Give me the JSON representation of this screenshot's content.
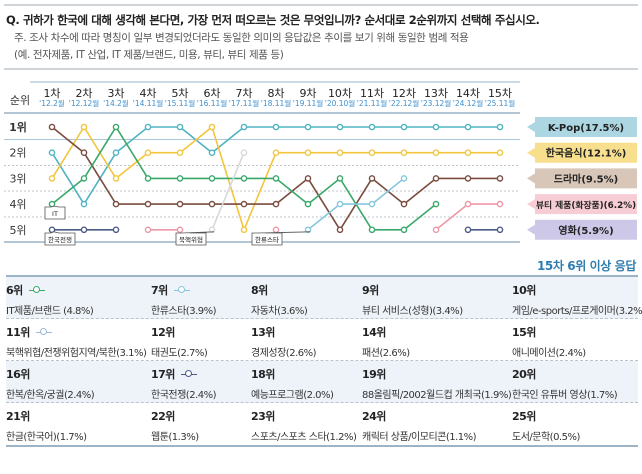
{
  "header": {
    "question": "Q. 귀하가 한국에 대해 생각해 본다면, 가장 먼저 떠오르는 것은 무엇입니까? 순서대로 2순위까지 선택해 주십시오.",
    "note1": "주. 조사 차수에 따라 명칭이 일부 변경되었더라도 동일한 의미의 응답값은 추이를 보기 위해 동일한 범례 적용",
    "note2": "(예. 전자제품, IT 산업, IT 제품/브랜드, 미용, 뷰티, 뷰티 제품 등)"
  },
  "chart_data": {
    "type": "line",
    "ylabel": "순위",
    "categories": [
      "1차",
      "2차",
      "3차",
      "4차",
      "5차",
      "6차",
      "7차",
      "8차",
      "9차",
      "10차",
      "11차",
      "12차",
      "13차",
      "14차",
      "15차"
    ],
    "dates": [
      "'12.2월",
      "'12.12월",
      "'14.2월",
      "'14.11월",
      "'15.11월",
      "'16.11월",
      "'17.11월",
      "'18.11월",
      "'19.11월",
      "'20.10월",
      "'21.11월",
      "'22.12월",
      "'23.12월",
      "'24.12월",
      "'25.11월"
    ],
    "y_ticks": [
      "1위",
      "2위",
      "3위",
      "4위",
      "5위"
    ],
    "ylim": [
      1,
      5
    ],
    "y_inverted": true,
    "series": [
      {
        "name": "K-Pop(17.5%)",
        "color": "#4fb3c4",
        "legend_bg": "#acd6e2",
        "values": [
          2,
          4,
          2,
          1,
          1,
          2,
          1,
          1,
          1,
          1,
          1,
          1,
          1,
          1,
          1
        ]
      },
      {
        "name": "한국음식(12.1%)",
        "color": "#f2c53d",
        "legend_bg": "#f7df8e",
        "values": [
          3,
          1,
          3,
          2,
          2,
          1,
          5,
          2,
          2,
          2,
          2,
          2,
          2,
          2,
          2
        ]
      },
      {
        "name": "드라마(9.5%)",
        "color": "#7a4b3e",
        "legend_bg": "#d8c6b8",
        "values": [
          1,
          2,
          4,
          4,
          4,
          4,
          4,
          4,
          3,
          5,
          3,
          4,
          3,
          3,
          3
        ]
      },
      {
        "name": "뷰티 제품(화장품)(6.2%)",
        "color": "#ee97a6",
        "legend_bg": "#f6cdd4",
        "values": [
          null,
          null,
          null,
          5,
          5,
          null,
          null,
          5,
          null,
          null,
          null,
          null,
          5,
          4,
          4
        ],
        "segments": [
          [
            4,
            5
          ],
          [
            8,
            8
          ],
          [
            13,
            15
          ]
        ]
      },
      {
        "name": "영화(5.9%)",
        "color": "#4a5c86",
        "legend_bg": "#cdc8e8",
        "values": [
          null,
          null,
          null,
          null,
          null,
          null,
          null,
          null,
          null,
          null,
          null,
          null,
          null,
          5,
          5
        ]
      },
      {
        "name": "IT",
        "color": "#3aa86a",
        "values": [
          4,
          3,
          1,
          3,
          3,
          3,
          3,
          3,
          4,
          3,
          5,
          5,
          4,
          null,
          null
        ],
        "callout": true
      },
      {
        "name": "한국전쟁",
        "color": "#4a5c86",
        "values": [
          5,
          5,
          5,
          null,
          null,
          null,
          null,
          null,
          null,
          null,
          null,
          null,
          null,
          null,
          null
        ],
        "callout": true
      },
      {
        "name": "북핵위협",
        "color": "#d6d9dc",
        "values": [
          null,
          null,
          null,
          null,
          null,
          5,
          2,
          null,
          null,
          null,
          null,
          null,
          null,
          null,
          null
        ],
        "callout": true
      },
      {
        "name": "한류스타",
        "color": "#86c6df",
        "values": [
          null,
          null,
          null,
          null,
          null,
          null,
          null,
          null,
          5,
          4,
          4,
          3,
          null,
          null,
          null
        ],
        "callout": true
      }
    ]
  },
  "table": {
    "title": "15차 6위 이상 응답",
    "rows": [
      [
        {
          "rank": "6위",
          "name": "IT제품/브랜드 (4.8%)",
          "marker": "#3aa86a"
        },
        {
          "rank": "7위",
          "name": "한류스타(3.9%)",
          "marker": "#86c6df"
        },
        {
          "rank": "8위",
          "name": "자동차(3.6%)"
        },
        {
          "rank": "9위",
          "name": "뷰티 서비스(성형)(3.4%)"
        },
        {
          "rank": "10위",
          "name": "게임/e-sports/프로게이머(3.2%)"
        }
      ],
      [
        {
          "rank": "11위",
          "name": "북핵위협/전쟁위험지역/북한(3.1%)",
          "marker": "#9fb8d8"
        },
        {
          "rank": "12위",
          "name": "태권도(2.7%)"
        },
        {
          "rank": "13위",
          "name": "경제성장(2.6%)"
        },
        {
          "rank": "14위",
          "name": "패션(2.6%)"
        },
        {
          "rank": "15위",
          "name": "애니메이션(2.4%)"
        }
      ],
      [
        {
          "rank": "16위",
          "name": "한복/한옥/궁궐(2.4%)"
        },
        {
          "rank": "17위",
          "name": "한국전쟁(2.4%)",
          "marker": "#4a5c86"
        },
        {
          "rank": "18위",
          "name": "예능프로그램(2.0%)"
        },
        {
          "rank": "19위",
          "name": "88올림픽/2002월드컵 개최국(1.9%)"
        },
        {
          "rank": "20위",
          "name": "한국인 유튜버 영상(1.7%)"
        }
      ],
      [
        {
          "rank": "21위",
          "name": "한글(한국어)(1.7%)"
        },
        {
          "rank": "22위",
          "name": "웹툰(1.3%)"
        },
        {
          "rank": "23위",
          "name": "스포츠/스포츠 스타(1.2%)"
        },
        {
          "rank": "24위",
          "name": "캐릭터 상품/이모티콘(1.1%)"
        },
        {
          "rank": "25위",
          "name": "도서/문학(0.5%)"
        }
      ]
    ]
  }
}
